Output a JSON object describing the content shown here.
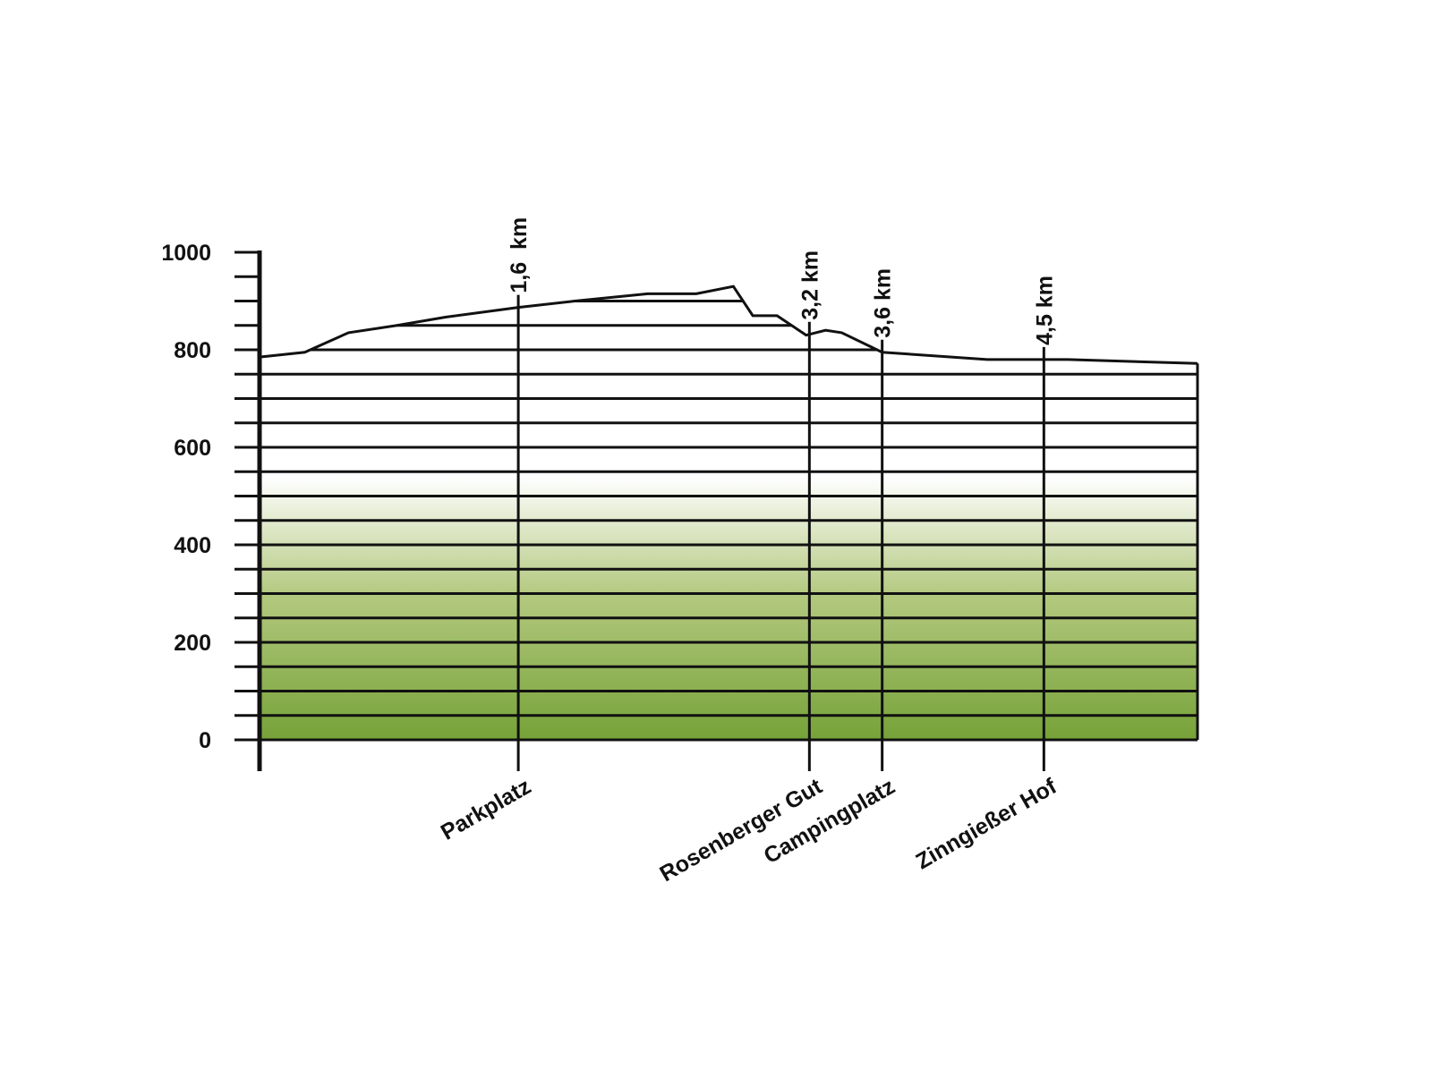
{
  "chart_data": {
    "type": "area",
    "title": "",
    "xlabel": "",
    "ylabel": "",
    "ylim": [
      0,
      1000
    ],
    "y_ticks": [
      {
        "value": 0,
        "label": "0"
      },
      {
        "value": 200,
        "label": "200"
      },
      {
        "value": 400,
        "label": "400"
      },
      {
        "value": 600,
        "label": "600"
      },
      {
        "value": 800,
        "label": "800"
      },
      {
        "value": 1000,
        "label": "1000"
      }
    ],
    "y_minor_step": 50,
    "x_range_km": [
      0,
      5.8
    ],
    "grid": "horizontal",
    "colors": {
      "fill_top": "#ffffff",
      "fill_mid": "#b3c97f",
      "fill_bottom": "#76a238",
      "line": "#111111"
    },
    "series": [
      {
        "x": [
          0,
          0.28,
          0.55,
          0.85,
          1.15,
          1.6,
          1.95,
          2.4,
          2.7,
          2.93,
          3.05,
          3.2,
          3.38,
          3.5,
          3.6,
          3.85,
          4.5,
          5.0,
          5.8
        ],
        "y": [
          785,
          795,
          835,
          850,
          867,
          887,
          900,
          915,
          915,
          930,
          870,
          870,
          830,
          840,
          835,
          795,
          780,
          780,
          772
        ]
      }
    ],
    "markers": [
      {
        "x": 1.6,
        "km_label": "1,6  km",
        "place": "Parkplatz"
      },
      {
        "x": 3.4,
        "km_label": "3,2 km",
        "place": "Rosenberger Gut"
      },
      {
        "x": 3.85,
        "km_label": "3,6 km",
        "place": "Campingplatz"
      },
      {
        "x": 4.85,
        "km_label": "4,5 km",
        "place": "Zinngießer Hof"
      }
    ]
  }
}
